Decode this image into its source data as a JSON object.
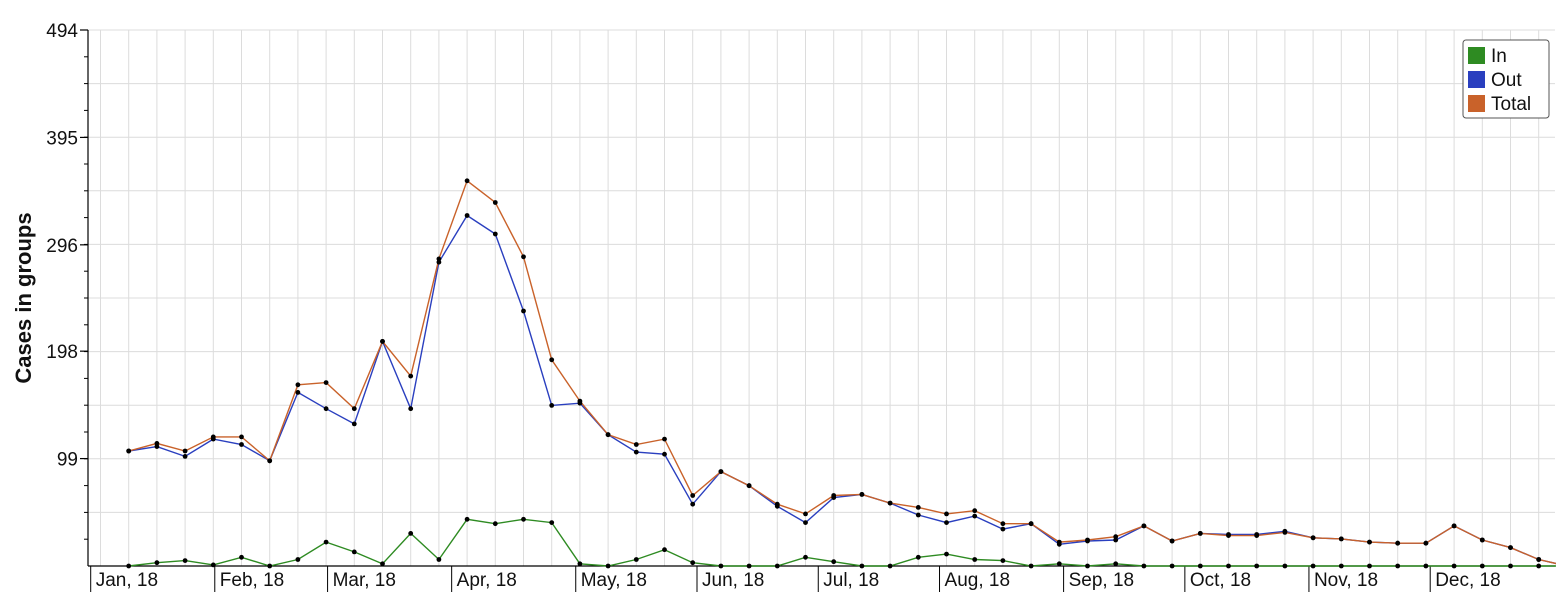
{
  "chart_data": {
    "type": "line",
    "ylabel": "Cases in groups",
    "xlabel": "",
    "ylim": [
      0,
      494
    ],
    "y_ticks": [
      "494",
      "395",
      "296",
      "198",
      "99"
    ],
    "x_tick_labels": [
      "Jan, 18",
      "Feb, 18",
      "Mar, 18",
      "Apr, 18",
      "May, 18",
      "Jun, 18",
      "Jul, 18",
      "Aug, 18",
      "Sep, 18",
      "Oct, 18",
      "Nov, 18",
      "Dec, 18"
    ],
    "x_weeks": [
      1,
      2,
      3,
      4,
      5,
      6,
      7,
      8,
      9,
      10,
      11,
      12,
      13,
      14,
      15,
      16,
      17,
      18,
      19,
      20,
      21,
      22,
      23,
      24,
      25,
      26,
      27,
      28,
      29,
      30,
      31,
      32,
      33,
      34,
      35,
      36,
      37,
      38,
      39,
      40,
      41,
      42,
      43,
      44,
      45,
      46,
      47,
      48,
      49,
      50,
      51,
      52
    ],
    "grid": true,
    "legend_position": "top-right",
    "series": [
      {
        "name": "In",
        "color": "#2e8b22",
        "values": [
          0,
          3,
          5,
          1,
          8,
          0,
          6,
          22,
          13,
          2,
          30,
          6,
          43,
          39,
          43,
          40,
          2,
          0,
          6,
          15,
          3,
          0,
          0,
          0,
          8,
          4,
          0,
          0,
          8,
          11,
          6,
          5,
          0,
          2,
          0,
          2,
          0,
          0,
          0,
          0,
          0,
          0,
          0,
          0,
          0,
          0,
          0,
          0,
          0,
          0,
          0,
          0
        ]
      },
      {
        "name": "Out",
        "color": "#2a3fbf",
        "values": [
          106,
          110,
          101,
          117,
          112,
          97,
          160,
          145,
          131,
          207,
          145,
          280,
          323,
          306,
          235,
          148,
          150,
          121,
          105,
          103,
          57,
          87,
          74,
          55,
          40,
          63,
          66,
          58,
          47,
          40,
          46,
          34,
          39,
          20,
          23,
          24,
          37,
          23,
          30,
          29,
          29,
          32,
          26,
          25,
          22,
          21,
          21,
          37,
          24,
          17,
          6,
          0
        ]
      },
      {
        "name": "Total",
        "color": "#c9622a",
        "values": [
          106,
          113,
          106,
          119,
          119,
          97,
          167,
          169,
          145,
          207,
          175,
          283,
          355,
          335,
          285,
          190,
          152,
          121,
          112,
          117,
          65,
          87,
          74,
          57,
          48,
          65,
          66,
          58,
          54,
          48,
          51,
          39,
          39,
          22,
          24,
          27,
          37,
          23,
          30,
          28,
          28,
          31,
          26,
          25,
          22,
          21,
          21,
          37,
          24,
          17,
          6,
          0
        ]
      }
    ]
  }
}
